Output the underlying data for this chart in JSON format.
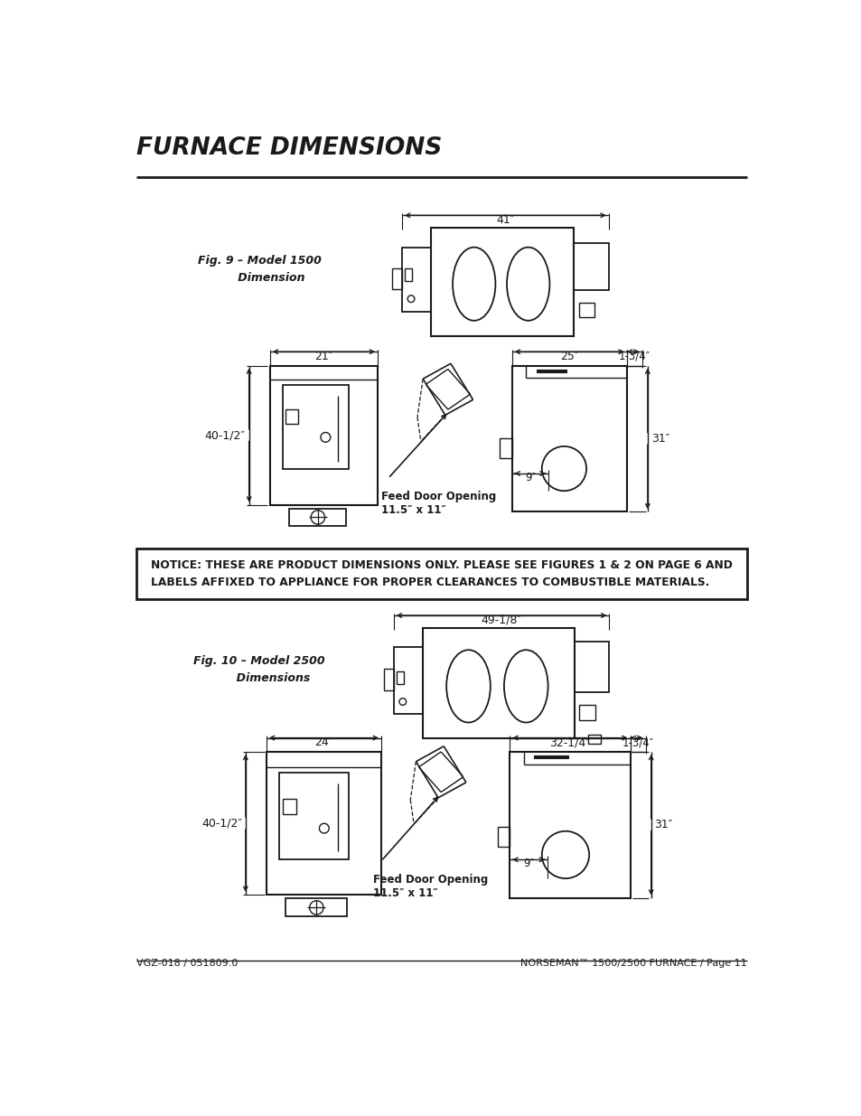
{
  "title": "FURNACE DIMENSIONS",
  "footer_left": "VGZ-018 / 051809.0",
  "footer_right": "NORSEMAN™ 1500/2500 FURNACE / Page 11",
  "fig9_label": "Fig. 9 – Model 1500\n      Dimension",
  "fig10_label": "Fig. 10 – Model 2500\n       Dimensions",
  "notice_text": "NOTICE: THESE ARE PRODUCT DIMENSIONS ONLY. PLEASE SEE FIGURES 1 & 2 ON PAGE 6 AND\nLABELS AFFIXED TO APPLIANCE FOR PROPER CLEARANCES TO COMBUSTIBLE MATERIALS.",
  "bg_color": "#ffffff",
  "text_color": "#1a1a1a"
}
